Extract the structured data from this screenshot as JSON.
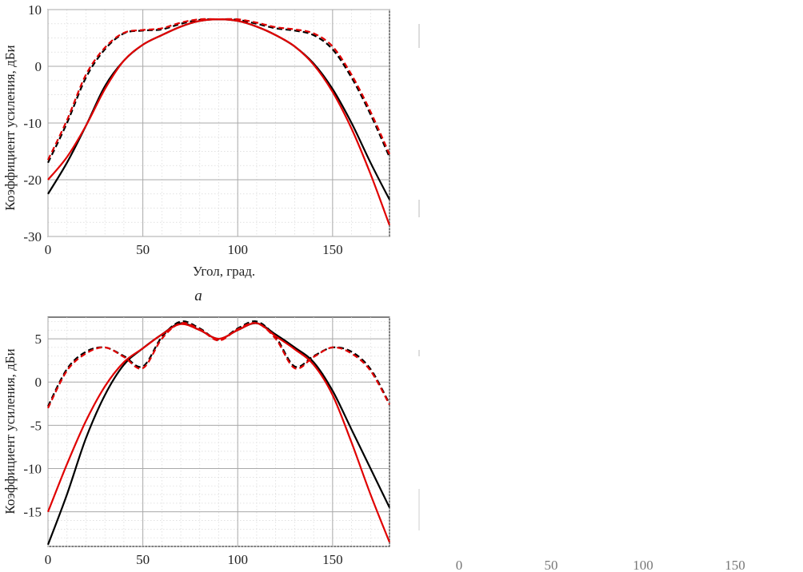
{
  "chart_data": [
    {
      "type": "line",
      "panel_label": "а",
      "xlabel": "Угол, град.",
      "ylabel": "Коэффициент усиления, дБи",
      "xlim": [
        0,
        180
      ],
      "ylim": [
        -30,
        10
      ],
      "xticks": [
        0,
        50,
        100,
        150
      ],
      "yticks": [
        10,
        0,
        -10,
        -20,
        -30
      ],
      "grid": true,
      "minor_grid": true,
      "x": [
        0,
        10,
        20,
        30,
        40,
        50,
        60,
        70,
        80,
        90,
        100,
        110,
        120,
        130,
        140,
        150,
        160,
        170,
        180
      ],
      "series": [
        {
          "color": "#000000",
          "style": "solid",
          "values": [
            -22.5,
            -17,
            -10.5,
            -3.5,
            1,
            3.8,
            5.5,
            7,
            8,
            8.3,
            8,
            7,
            5.5,
            3.5,
            0.5,
            -4,
            -10,
            -17,
            -23.5
          ]
        },
        {
          "color": "#000000",
          "style": "dashed",
          "values": [
            -17,
            -10,
            -2,
            3,
            5.8,
            6.3,
            6.5,
            7.5,
            8.2,
            8.3,
            8.2,
            7.5,
            6.7,
            6.3,
            5.5,
            3,
            -2,
            -8.5,
            -16
          ]
        },
        {
          "color": "#e00000",
          "style": "solid",
          "values": [
            -20,
            -16,
            -10.5,
            -4,
            1,
            3.8,
            5.5,
            7,
            8,
            8.3,
            8,
            7,
            5.5,
            3.5,
            0.3,
            -4.5,
            -11,
            -19,
            -28
          ]
        },
        {
          "color": "#e00000",
          "style": "dashed",
          "values": [
            -16.5,
            -9.5,
            -1.5,
            3.3,
            5.9,
            6.4,
            6.7,
            7.7,
            8.3,
            8.3,
            8.3,
            7.7,
            6.9,
            6.5,
            5.8,
            3.5,
            -1.5,
            -8,
            -15.5
          ]
        }
      ]
    },
    {
      "type": "line",
      "ylabel": "Коэффициент усиления, дБи",
      "xlim": [
        0,
        180
      ],
      "ylim": [
        -19,
        7.5
      ],
      "xticks": [
        0,
        50,
        100,
        150
      ],
      "yticks": [
        5,
        0,
        -5,
        -10,
        -15
      ],
      "grid": true,
      "minor_grid": true,
      "x": [
        0,
        10,
        20,
        30,
        40,
        50,
        60,
        70,
        80,
        90,
        100,
        110,
        120,
        130,
        140,
        150,
        160,
        170,
        180
      ],
      "series": [
        {
          "color": "#000000",
          "style": "solid",
          "values": [
            -18.8,
            -13,
            -6.5,
            -1.5,
            2,
            3.9,
            5.5,
            6.8,
            6,
            5,
            6,
            6.8,
            5.5,
            4,
            2.3,
            -1,
            -5.5,
            -10,
            -14.5
          ]
        },
        {
          "color": "#000000",
          "style": "dashed",
          "values": [
            -2.8,
            1.5,
            3.5,
            4,
            3,
            1.8,
            5.2,
            7,
            6.2,
            4.9,
            6.2,
            7,
            5.2,
            1.8,
            3,
            4,
            3.5,
            1.5,
            -2.5
          ]
        },
        {
          "color": "#e00000",
          "style": "solid",
          "values": [
            -15,
            -9.5,
            -4.5,
            -0.5,
            2.3,
            3.9,
            5.5,
            6.7,
            6,
            5,
            6,
            6.8,
            5.3,
            3.8,
            2,
            -1.5,
            -7,
            -13,
            -18.5
          ]
        },
        {
          "color": "#e00000",
          "style": "dashed",
          "values": [
            -3,
            1.3,
            3.3,
            4,
            2.9,
            1.6,
            5,
            6.8,
            6.1,
            4.8,
            6.1,
            6.8,
            5,
            1.6,
            2.9,
            4,
            3.3,
            1.3,
            -2.6
          ]
        }
      ]
    },
    {
      "type": "line",
      "partial": true,
      "xticks": [
        0,
        50,
        100,
        150
      ]
    }
  ]
}
